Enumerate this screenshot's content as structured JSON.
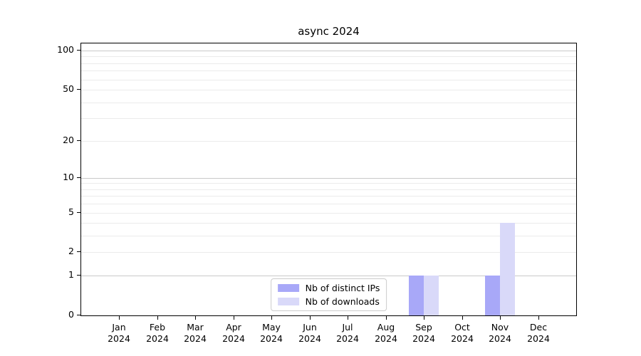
{
  "figure": {
    "title": "async 2024"
  },
  "chart_data": {
    "type": "bar",
    "title": "async 2024",
    "categories": [
      "Jan 2024",
      "Feb 2024",
      "Mar 2024",
      "Apr 2024",
      "May 2024",
      "Jun 2024",
      "Jul 2024",
      "Aug 2024",
      "Sep 2024",
      "Oct 2024",
      "Nov 2024",
      "Dec 2024"
    ],
    "series": [
      {
        "name": "Nb of distinct IPs",
        "color": "#a8a8f8",
        "values": [
          0,
          0,
          0,
          0,
          0,
          0,
          0,
          0,
          1,
          0,
          1,
          0
        ]
      },
      {
        "name": "Nb of downloads",
        "color": "#d9d9f9",
        "values": [
          0,
          0,
          0,
          0,
          0,
          0,
          0,
          0,
          1,
          0,
          4,
          0
        ]
      }
    ],
    "yscale": "log1p",
    "ylim": [
      0,
      113.2
    ],
    "y_tick_labels": [
      0,
      1,
      2,
      5,
      10,
      20,
      50,
      100
    ],
    "y_major_gridlines": [
      1,
      10,
      100
    ],
    "y_minor_gridlines": [
      2,
      3,
      4,
      5,
      6,
      7,
      8,
      9,
      20,
      30,
      40,
      50,
      60,
      70,
      80,
      90
    ],
    "grid": "horizontal",
    "legend_position": "lower center",
    "colors": {
      "major_grid": "#c9c9c9",
      "minor_grid": "#ebebeb",
      "axis": "#000000",
      "background": "#ffffff"
    }
  }
}
